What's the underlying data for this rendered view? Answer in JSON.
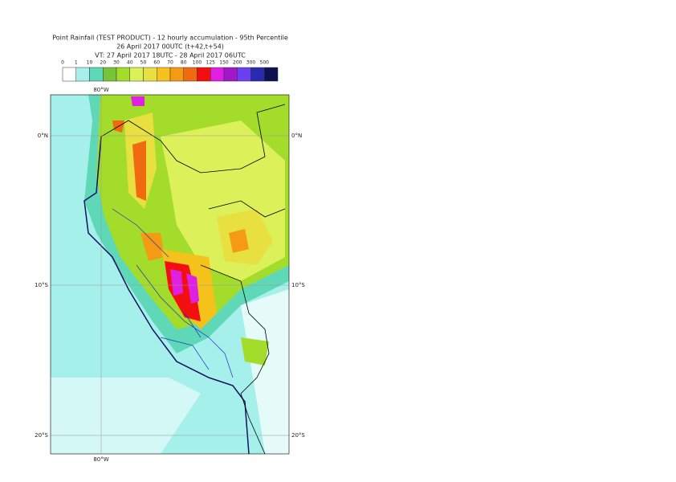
{
  "header": {
    "line1": "Point Rainfall (TEST PRODUCT) - 12 hourly accumulation - 95th Percentile",
    "line2": "26 April 2017 00UTC (t+42,t+54)",
    "line3": "VT: 27 April 2017 18UTC - 28 April 2017 06UTC"
  },
  "legend": {
    "labels": [
      "0",
      "1",
      "10",
      "20",
      "30",
      "40",
      "50",
      "60",
      "70",
      "80",
      "100",
      "125",
      "150",
      "200",
      "300",
      "500"
    ],
    "colors": [
      "#ffffff",
      "#a6f0ec",
      "#5fd8b8",
      "#76c43a",
      "#a3dc2a",
      "#dcf05a",
      "#e8e040",
      "#f5c21c",
      "#f59a14",
      "#f06a10",
      "#f20f0f",
      "#e020e0",
      "#a018c8",
      "#6a40f0",
      "#2a2ab0",
      "#101050"
    ]
  },
  "map": {
    "lon_label_top": "80°W",
    "lon_label_bottom": "80°W",
    "lat_labels_left": [
      "0°N",
      "10°S",
      "20°S"
    ],
    "lat_labels_right": [
      "0°N",
      "10°S",
      "20°S"
    ]
  }
}
